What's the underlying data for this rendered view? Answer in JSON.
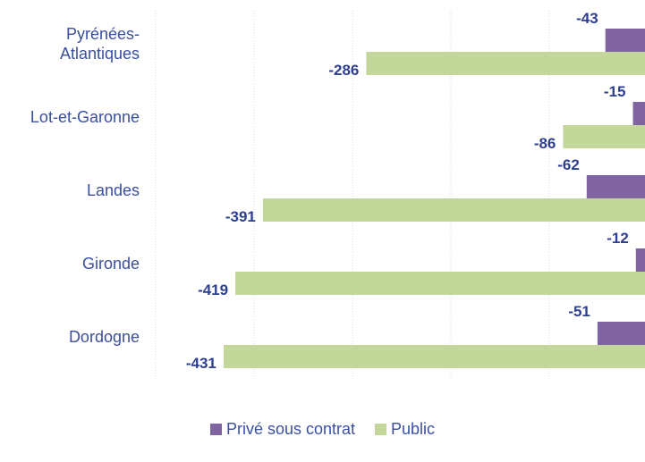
{
  "chart_data": {
    "type": "bar",
    "orientation": "horizontal",
    "categories": [
      "Pyrénées-Atlantiques",
      "Lot-et-Garonne",
      "Landes",
      "Gironde",
      "Dordogne"
    ],
    "category_lines": [
      [
        "Pyrénées-",
        "Atlantiques"
      ],
      [
        "Lot-et-Garonne"
      ],
      [
        "Landes"
      ],
      [
        "Gironde"
      ],
      [
        "Dordogne"
      ]
    ],
    "series": [
      {
        "name": "Privé sous contrat",
        "color": "#8064a2",
        "values": [
          -43,
          -15,
          -62,
          -12,
          -51
        ]
      },
      {
        "name": "Public",
        "color": "#c4d79b",
        "values": [
          -286,
          -86,
          -391,
          -419,
          -431
        ]
      }
    ],
    "xlim": [
      -500,
      0
    ],
    "grid": true,
    "legend_position": "bottom"
  }
}
